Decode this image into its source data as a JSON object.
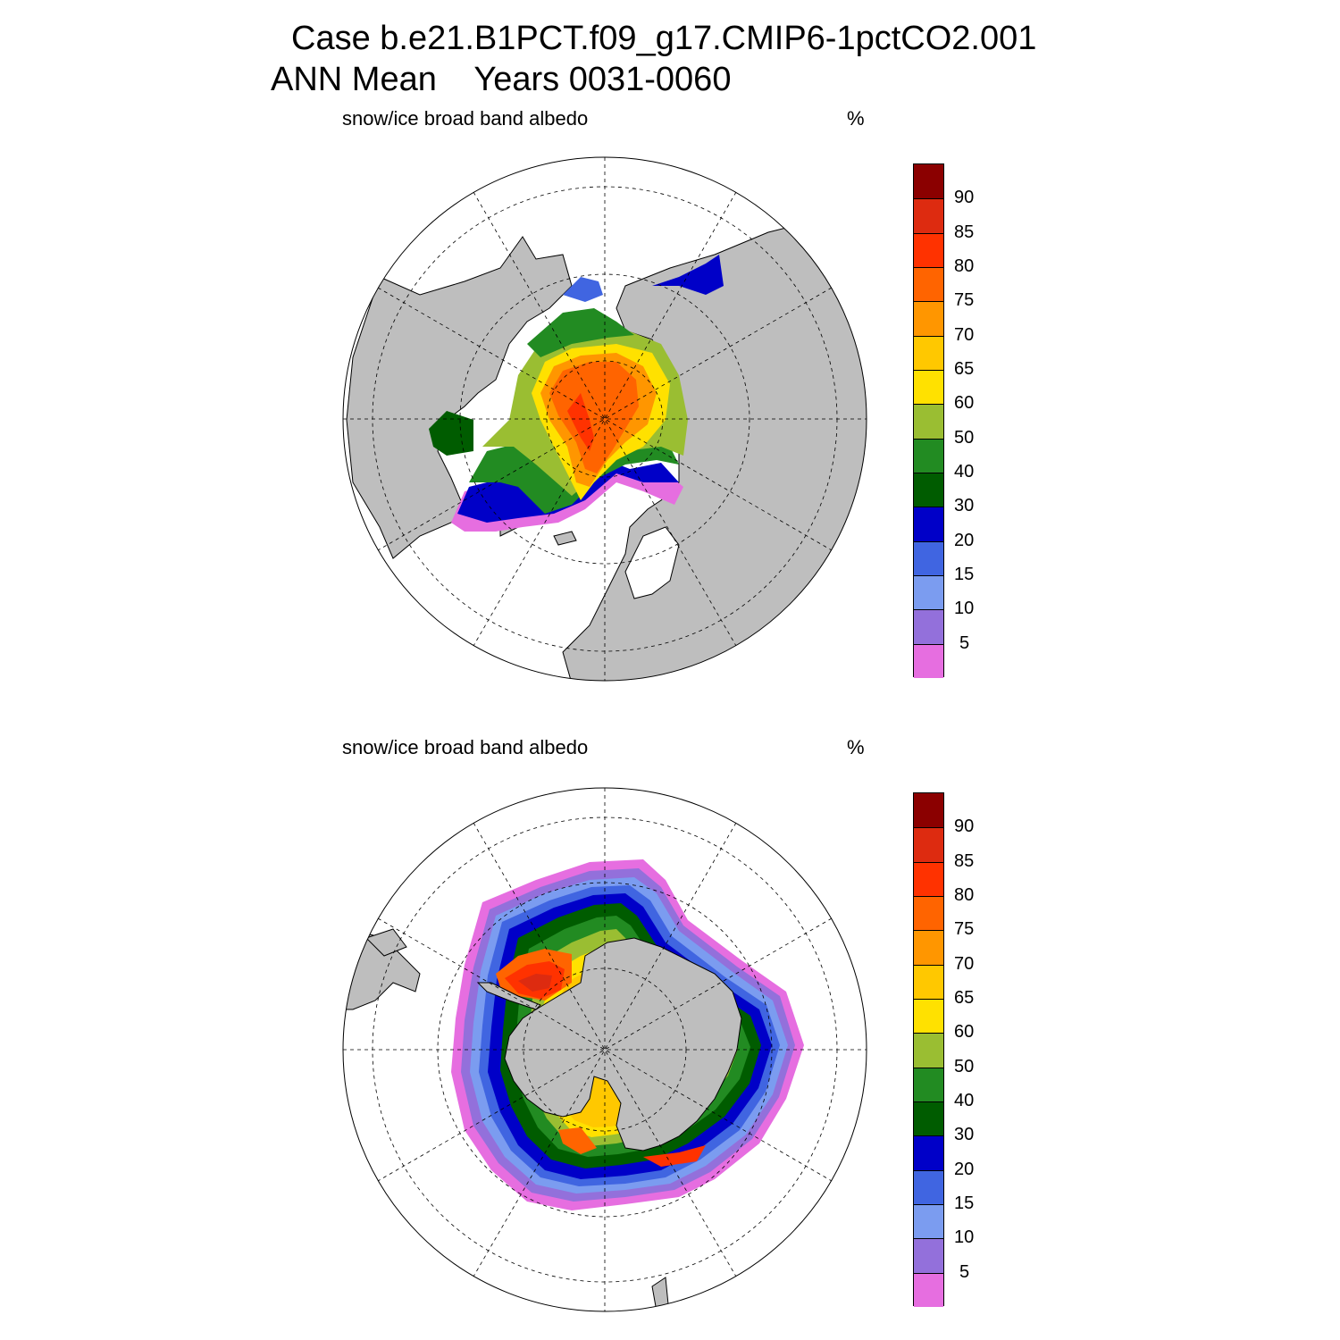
{
  "title": {
    "line1": "Case b.e21.B1PCT.f09_g17.CMIP6-1pctCO2.001",
    "line2": "ANN Mean    Years 0031-0060"
  },
  "panels": [
    {
      "id": "north",
      "variable": "snow/ice broad band albedo",
      "units": "%"
    },
    {
      "id": "south",
      "variable": "snow/ice broad band albedo",
      "units": "%"
    }
  ],
  "colorbar": {
    "labels": [
      "90",
      "85",
      "80",
      "75",
      "70",
      "65",
      "60",
      "50",
      "40",
      "30",
      "20",
      "15",
      "10",
      "5"
    ],
    "colors": [
      "#8b0000",
      "#dd2b10",
      "#ff3200",
      "#ff6400",
      "#ff9600",
      "#ffc800",
      "#ffe100",
      "#9abe32",
      "#228b22",
      "#005c00",
      "#0000c8",
      "#4065e1",
      "#7b9cf0",
      "#9370db",
      "#e66ee0"
    ]
  },
  "map_colors": {
    "land": "#bebebe",
    "ocean": "#ffffff",
    "coast": "#000000"
  }
}
